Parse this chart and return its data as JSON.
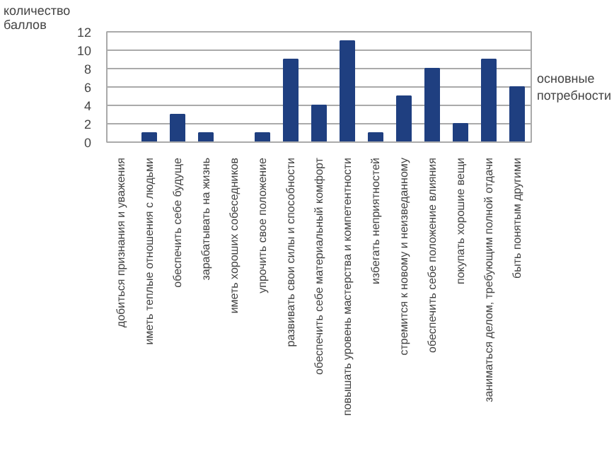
{
  "chart_data": {
    "type": "bar",
    "ylabel": "количество баллов",
    "xlabel": "основные потребности",
    "categories": [
      "добиться признания и уважения",
      "иметь теплые отношения с людьми",
      "обеспечить себе будуще",
      "зарабатывать на жизнь",
      "иметь хороших собеседников",
      "упрочить свое положение",
      "развивать свои силы и способности",
      "обеспечить себе материальный комфорт",
      "повышать уровень мастерства и компетентности",
      "избегать неприятностей",
      "стремится к новому и неизведанному",
      "обеспечить себе положение влияния",
      "покупать хорошие вещи",
      "заниматься делом, требующим полной отдачи",
      "быть понятым другими"
    ],
    "values": [
      0,
      1,
      3,
      1,
      0,
      1,
      9,
      4,
      11,
      1,
      5,
      8,
      2,
      9,
      6
    ],
    "color": "#1f3f80",
    "ylim": [
      0,
      12
    ],
    "yticks": [
      0,
      2,
      4,
      6,
      8,
      10,
      12
    ],
    "grid": "y"
  }
}
